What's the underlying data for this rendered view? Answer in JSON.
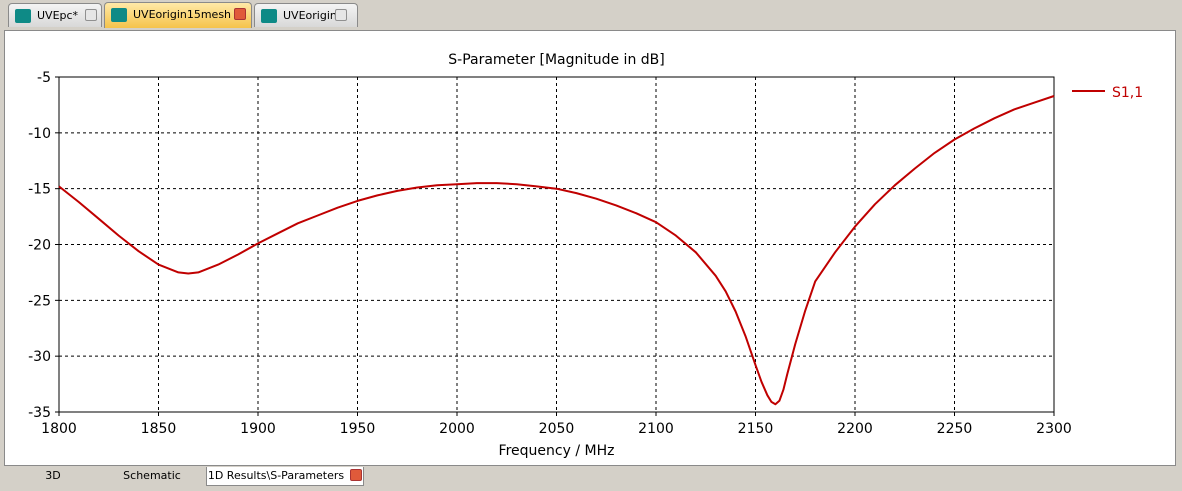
{
  "tabs": [
    {
      "label": "UVEpc*",
      "active": false
    },
    {
      "label": "UVEorigin15mesh",
      "active": true
    },
    {
      "label": "UVEorigin",
      "active": false
    }
  ],
  "bottom_tabs": [
    {
      "label": "3D",
      "active": false
    },
    {
      "label": "Schematic",
      "active": false
    },
    {
      "label": "1D Results\\S-Parameters",
      "active": true
    }
  ],
  "chart_data": {
    "type": "line",
    "title": "S-Parameter [Magnitude in dB]",
    "xlabel": "Frequency / MHz",
    "ylabel": "",
    "xlim": [
      1800,
      2300
    ],
    "ylim": [
      -35,
      -5
    ],
    "xticks": [
      1800,
      1850,
      1900,
      1950,
      2000,
      2050,
      2100,
      2150,
      2200,
      2250,
      2300
    ],
    "yticks": [
      -5,
      -10,
      -15,
      -20,
      -25,
      -30,
      -35
    ],
    "grid": true,
    "legend_position": "right",
    "series": [
      {
        "name": "S1,1",
        "color": "#c00000",
        "x": [
          1800,
          1810,
          1820,
          1830,
          1840,
          1850,
          1860,
          1865,
          1870,
          1880,
          1890,
          1900,
          1910,
          1920,
          1930,
          1940,
          1950,
          1960,
          1970,
          1980,
          1990,
          2000,
          2010,
          2015,
          2020,
          2030,
          2040,
          2050,
          2060,
          2070,
          2080,
          2090,
          2100,
          2110,
          2120,
          2130,
          2135,
          2140,
          2145,
          2150,
          2153,
          2156,
          2158,
          2160,
          2162,
          2164,
          2166,
          2170,
          2175,
          2180,
          2190,
          2200,
          2210,
          2220,
          2230,
          2240,
          2250,
          2260,
          2270,
          2280,
          2290,
          2300
        ],
        "values": [
          -14.8,
          -16.2,
          -17.7,
          -19.2,
          -20.6,
          -21.8,
          -22.5,
          -22.6,
          -22.5,
          -21.8,
          -20.9,
          -19.9,
          -19.0,
          -18.1,
          -17.4,
          -16.7,
          -16.1,
          -15.6,
          -15.2,
          -14.9,
          -14.7,
          -14.6,
          -14.5,
          -14.5,
          -14.5,
          -14.6,
          -14.8,
          -15.0,
          -15.4,
          -15.9,
          -16.5,
          -17.2,
          -18.0,
          -19.2,
          -20.7,
          -22.8,
          -24.2,
          -26.0,
          -28.2,
          -30.8,
          -32.3,
          -33.5,
          -34.1,
          -34.3,
          -34.0,
          -33.0,
          -31.6,
          -28.9,
          -25.9,
          -23.3,
          -20.7,
          -18.4,
          -16.4,
          -14.7,
          -13.2,
          -11.8,
          -10.6,
          -9.6,
          -8.7,
          -7.9,
          -7.3,
          -6.7
        ]
      }
    ]
  }
}
